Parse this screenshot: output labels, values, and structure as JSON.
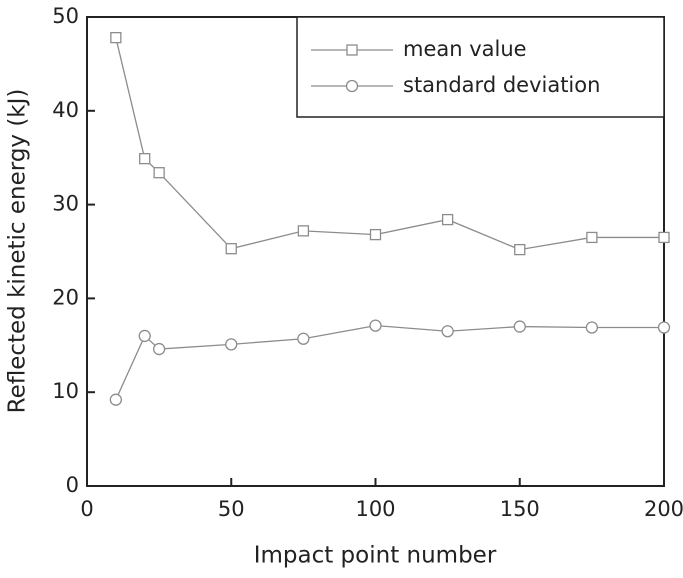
{
  "chart_data": {
    "type": "line",
    "x_label": "Impact point number",
    "y_label": "Reflected kinetic energy (kJ)",
    "x": [
      10,
      20,
      25,
      50,
      75,
      100,
      125,
      150,
      175,
      200
    ],
    "series": [
      {
        "name": "mean value",
        "color": "#8c8c8c",
        "marker": "square",
        "values": [
          47.8,
          34.9,
          33.4,
          25.3,
          27.2,
          26.8,
          28.4,
          25.2,
          26.5,
          26.5
        ]
      },
      {
        "name": "standard deviation",
        "color": "#8c8c8c",
        "marker": "circle",
        "values": [
          9.2,
          16.0,
          14.6,
          15.1,
          15.7,
          17.1,
          16.5,
          17.0,
          16.9,
          16.9
        ]
      }
    ],
    "xlim": [
      0,
      200
    ],
    "xticks": [
      0,
      50,
      100,
      150,
      200
    ],
    "ylim": [
      0,
      50
    ],
    "yticks": [
      0,
      10,
      20,
      30,
      40,
      50
    ],
    "legend": "top-right"
  }
}
